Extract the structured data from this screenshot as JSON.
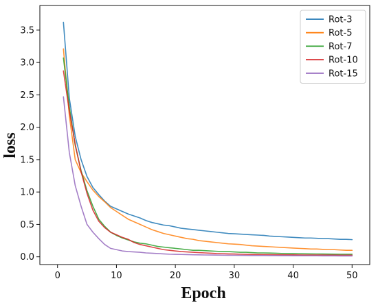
{
  "chart_data": {
    "type": "line",
    "xlabel": "Epoch",
    "ylabel": "loss",
    "xlim": [
      -3,
      53
    ],
    "ylim": [
      -0.12,
      3.88
    ],
    "xticks": [
      0,
      10,
      20,
      30,
      40,
      50
    ],
    "yticks": [
      0.0,
      0.5,
      1.0,
      1.5,
      2.0,
      2.5,
      3.0,
      3.5
    ],
    "xtick_labels": [
      "0",
      "10",
      "20",
      "30",
      "40",
      "50"
    ],
    "ytick_labels": [
      "0.0",
      "0.5",
      "1.0",
      "1.5",
      "2.0",
      "2.5",
      "3.0",
      "3.5"
    ],
    "grid": false,
    "legend_position": "top-right",
    "x": [
      1,
      2,
      3,
      4,
      5,
      6,
      7,
      8,
      9,
      10,
      11,
      12,
      13,
      14,
      15,
      16,
      17,
      18,
      19,
      20,
      21,
      22,
      23,
      24,
      25,
      26,
      27,
      28,
      29,
      30,
      31,
      32,
      33,
      34,
      35,
      36,
      37,
      38,
      39,
      40,
      41,
      42,
      43,
      44,
      45,
      46,
      47,
      48,
      49,
      50
    ],
    "series": [
      {
        "name": "Rot-3",
        "color": "#1f77b4",
        "values": [
          3.62,
          2.45,
          1.86,
          1.5,
          1.24,
          1.07,
          0.96,
          0.86,
          0.78,
          0.74,
          0.7,
          0.66,
          0.63,
          0.6,
          0.56,
          0.53,
          0.51,
          0.49,
          0.48,
          0.46,
          0.44,
          0.43,
          0.42,
          0.41,
          0.4,
          0.39,
          0.38,
          0.37,
          0.36,
          0.355,
          0.35,
          0.345,
          0.34,
          0.335,
          0.33,
          0.32,
          0.315,
          0.31,
          0.305,
          0.3,
          0.295,
          0.29,
          0.29,
          0.285,
          0.28,
          0.28,
          0.275,
          0.27,
          0.27,
          0.265
        ]
      },
      {
        "name": "Rot-5",
        "color": "#ff7f0e",
        "values": [
          3.21,
          2.18,
          1.5,
          1.3,
          1.16,
          1.03,
          0.93,
          0.85,
          0.76,
          0.7,
          0.64,
          0.58,
          0.54,
          0.5,
          0.46,
          0.42,
          0.39,
          0.36,
          0.34,
          0.32,
          0.3,
          0.28,
          0.27,
          0.25,
          0.24,
          0.23,
          0.22,
          0.21,
          0.2,
          0.195,
          0.19,
          0.18,
          0.17,
          0.165,
          0.16,
          0.155,
          0.15,
          0.145,
          0.14,
          0.135,
          0.13,
          0.125,
          0.12,
          0.12,
          0.115,
          0.11,
          0.11,
          0.105,
          0.1,
          0.1
        ]
      },
      {
        "name": "Rot-7",
        "color": "#2ca02c",
        "values": [
          3.07,
          2.32,
          1.72,
          1.33,
          1.02,
          0.78,
          0.58,
          0.47,
          0.38,
          0.33,
          0.29,
          0.26,
          0.23,
          0.21,
          0.2,
          0.18,
          0.16,
          0.15,
          0.14,
          0.13,
          0.12,
          0.11,
          0.1,
          0.1,
          0.095,
          0.09,
          0.085,
          0.08,
          0.08,
          0.075,
          0.07,
          0.07,
          0.065,
          0.06,
          0.06,
          0.058,
          0.055,
          0.052,
          0.05,
          0.05,
          0.048,
          0.046,
          0.045,
          0.044,
          0.043,
          0.042,
          0.041,
          0.04,
          0.04,
          0.04
        ]
      },
      {
        "name": "Rot-10",
        "color": "#d62728",
        "values": [
          2.87,
          2.25,
          1.74,
          1.31,
          0.98,
          0.72,
          0.55,
          0.45,
          0.38,
          0.34,
          0.3,
          0.27,
          0.22,
          0.19,
          0.17,
          0.15,
          0.13,
          0.11,
          0.1,
          0.09,
          0.08,
          0.075,
          0.07,
          0.065,
          0.06,
          0.055,
          0.05,
          0.048,
          0.045,
          0.043,
          0.04,
          0.038,
          0.036,
          0.035,
          0.034,
          0.033,
          0.032,
          0.031,
          0.03,
          0.03,
          0.029,
          0.028,
          0.028,
          0.027,
          0.027,
          0.026,
          0.026,
          0.025,
          0.025,
          0.025
        ]
      },
      {
        "name": "Rot-15",
        "color": "#9467bd",
        "values": [
          2.47,
          1.61,
          1.1,
          0.78,
          0.5,
          0.38,
          0.28,
          0.19,
          0.13,
          0.11,
          0.09,
          0.08,
          0.075,
          0.07,
          0.06,
          0.055,
          0.05,
          0.045,
          0.04,
          0.038,
          0.036,
          0.034,
          0.032,
          0.03,
          0.028,
          0.027,
          0.026,
          0.025,
          0.024,
          0.023,
          0.022,
          0.021,
          0.02,
          0.02,
          0.019,
          0.018,
          0.018,
          0.017,
          0.017,
          0.016,
          0.016,
          0.015,
          0.015,
          0.015,
          0.014,
          0.014,
          0.014,
          0.013,
          0.013,
          0.013
        ]
      }
    ]
  }
}
